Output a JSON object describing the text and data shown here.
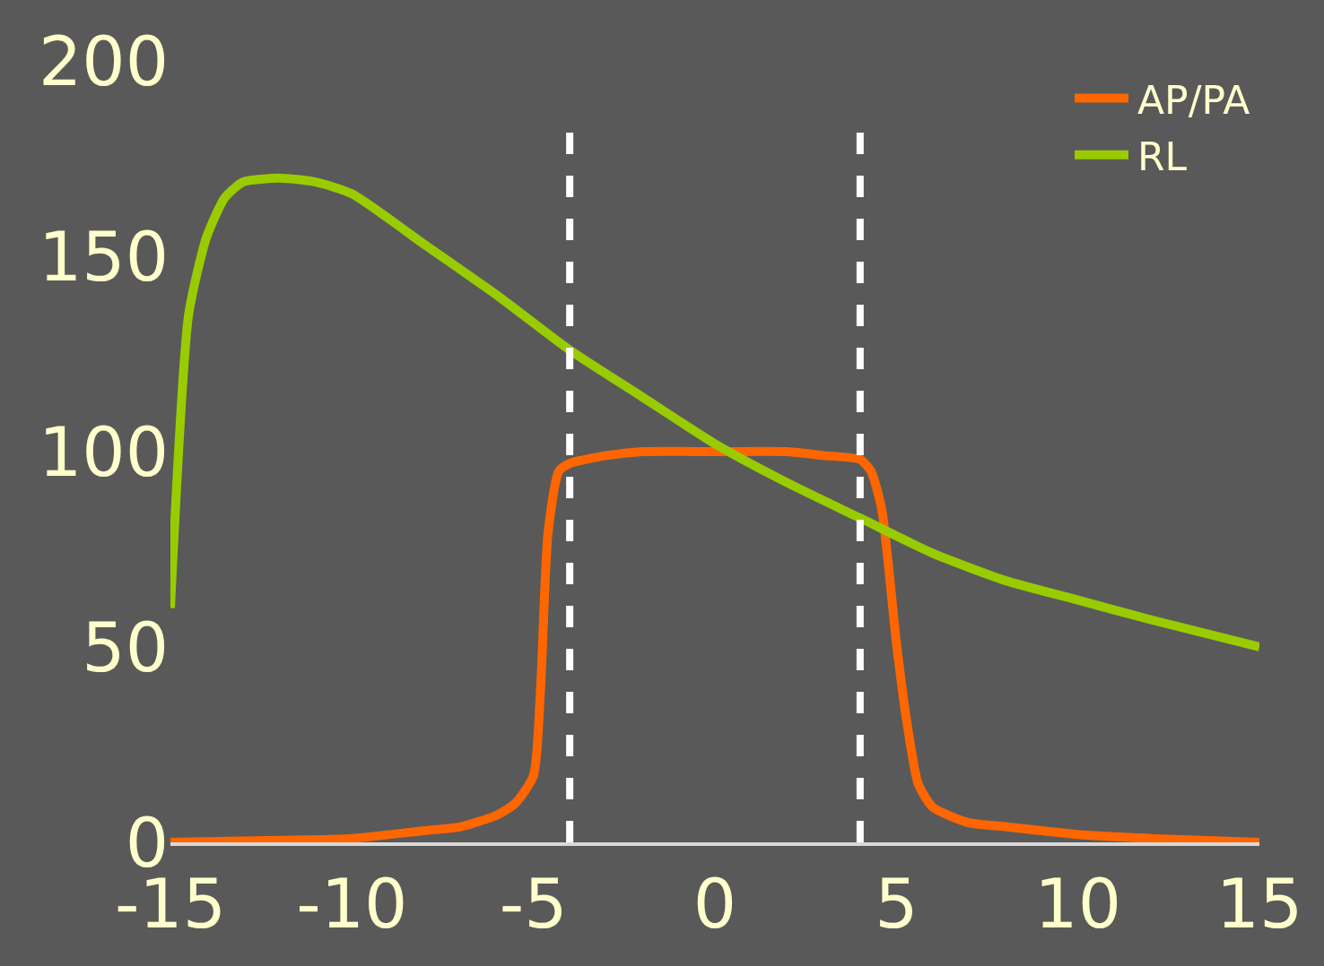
{
  "chart_data": {
    "type": "line",
    "xlim": [
      -15,
      15
    ],
    "ylim": [
      0,
      200
    ],
    "xticks": [
      -15,
      -10,
      -5,
      0,
      5,
      10,
      15
    ],
    "yticks": [
      0,
      50,
      100,
      150,
      200
    ],
    "grid": false,
    "legend": "top right",
    "ref_lines": [
      {
        "axis": "x",
        "value": -4,
        "color": "#ffffff",
        "line_style": "dashed"
      },
      {
        "axis": "x",
        "value": 4,
        "color": "#ffffff",
        "line_style": "dashed"
      }
    ],
    "series": [
      {
        "name": "AP/PA",
        "color": "#ff6600",
        "x": [
          -15,
          -12,
          -10,
          -8,
          -7,
          -6,
          -5.5,
          -5,
          -4.8,
          -4.6,
          -4.3,
          -4,
          -3,
          -2,
          0,
          2,
          3,
          4,
          4.3,
          4.6,
          5,
          5.3,
          5.6,
          6,
          7,
          8,
          10,
          12,
          15
        ],
        "values": [
          0,
          0.5,
          1,
          3,
          4,
          7,
          10,
          17,
          40,
          79,
          95,
          97,
          99,
          100,
          100,
          100,
          99,
          98,
          95,
          85,
          51,
          30,
          15,
          9,
          5,
          4,
          2,
          1,
          0
        ]
      },
      {
        "name": "RL",
        "color": "#99cc00",
        "x": [
          -15,
          -14.5,
          -14,
          -13.5,
          -13,
          -12,
          -11,
          -10,
          -8,
          -6,
          -4,
          -2,
          0,
          2,
          4,
          6,
          8,
          10,
          12,
          15
        ],
        "values": [
          60,
          135,
          155,
          165,
          169,
          170,
          169,
          166,
          153,
          140,
          126,
          114,
          102,
          92,
          83,
          74,
          67,
          62,
          57,
          50
        ]
      }
    ]
  }
}
